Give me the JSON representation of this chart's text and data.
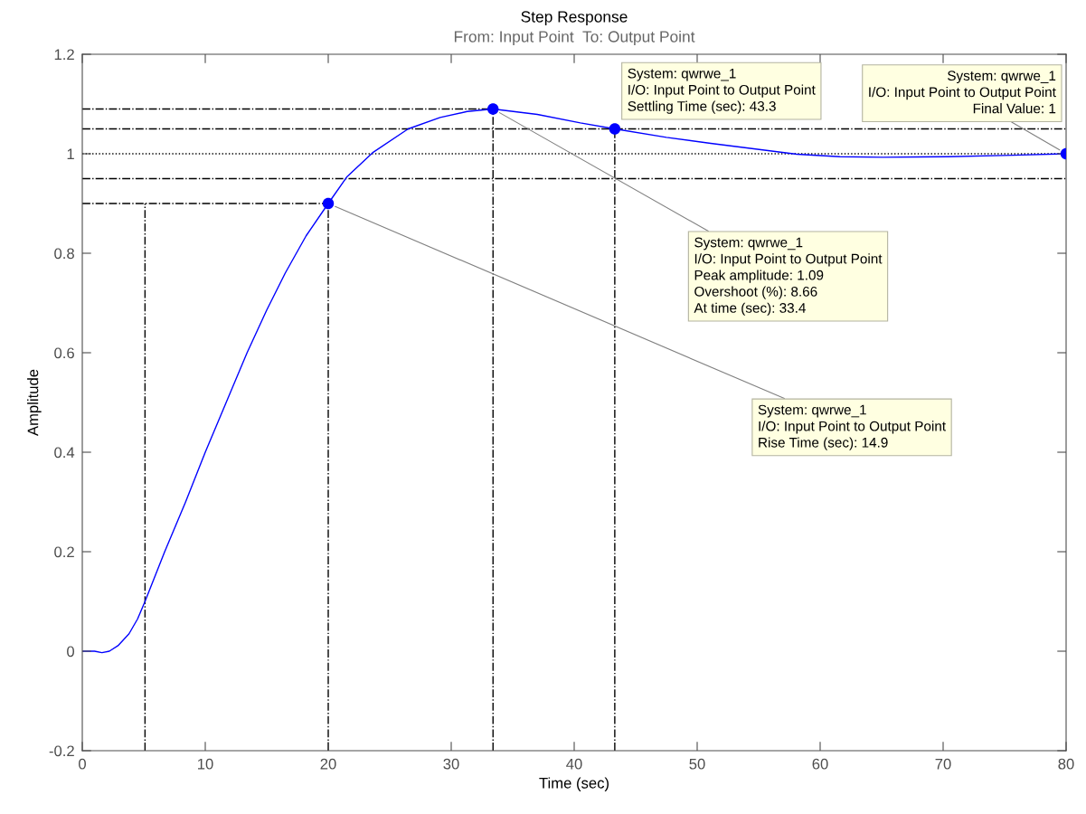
{
  "chart_data": {
    "type": "line",
    "title": "Step Response",
    "subtitle": "From: Input Point  To: Output Point",
    "xlabel": "Time (sec)",
    "ylabel": "Amplitude",
    "xlim": [
      0,
      80
    ],
    "xticks": [
      0,
      10,
      20,
      30,
      40,
      50,
      60,
      70,
      80
    ],
    "ylim": [
      -0.2,
      1.2
    ],
    "yticks": [
      -0.2,
      0,
      0.2,
      0.4,
      0.6,
      0.8,
      1,
      1.2
    ],
    "series": [
      {
        "color": "#0000ff",
        "marker": "none",
        "line_style": "solid",
        "x": [
          0,
          1,
          1.6,
          2.2,
          2.9,
          3.8,
          4.5,
          5.1,
          6.7,
          8.4,
          10.0,
          11.7,
          13.4,
          15.0,
          16.5,
          18.2,
          20,
          21.5,
          23.6,
          26.5,
          29.1,
          31.3,
          33.4,
          37,
          40.5,
          43.3,
          47.5,
          51.1,
          54.6,
          58.1,
          61.6,
          65.1,
          70.4,
          75.7,
          80
        ],
        "values": [
          0,
          0,
          -0.003,
          0,
          0.011,
          0.035,
          0.065,
          0.1,
          0.2,
          0.3,
          0.4,
          0.5,
          0.6,
          0.686,
          0.76,
          0.835,
          0.9,
          0.953,
          1.002,
          1.05,
          1.073,
          1.085,
          1.09,
          1.079,
          1.062,
          1.05,
          1.033,
          1.021,
          1.01,
          0.999,
          0.994,
          0.993,
          0.994,
          0.997,
          1
        ]
      },
      {
        "type": "line",
        "color": "#000000",
        "line_style": "dashdot",
        "x": [
          0,
          33.4
        ],
        "values": [
          1.09,
          1.09
        ]
      },
      {
        "type": "line",
        "color": "#000000",
        "line_style": "dashdot",
        "x": [
          33.4,
          33.4
        ],
        "values": [
          -0.2,
          1.09
        ]
      },
      {
        "type": "line",
        "color": "#000000",
        "line_style": "dashdot",
        "x": [
          43.3,
          43.3
        ],
        "values": [
          -0.2,
          1.05
        ]
      },
      {
        "type": "line",
        "color": "#000000",
        "line_style": "dashdot",
        "x": [
          0,
          20
        ],
        "values": [
          0.9,
          0.9
        ]
      },
      {
        "type": "line",
        "color": "#000000",
        "line_style": "dashdot",
        "x": [
          5.1,
          5.1
        ],
        "values": [
          -0.2,
          0.9
        ]
      },
      {
        "type": "line",
        "color": "#000000",
        "line_style": "dashdot",
        "x": [
          20,
          20
        ],
        "values": [
          -0.2,
          0.9
        ]
      },
      {
        "type": "scatter",
        "color": "#0000ff",
        "marker": "circle",
        "x": [
          20,
          33.4,
          43.3,
          80
        ],
        "values": [
          0.9,
          1.09,
          1.05,
          1
        ]
      }
    ],
    "ref_lines": [
      {
        "axis": "y",
        "value": 1.05,
        "color": "#000000",
        "line_style": "dashdot"
      },
      {
        "axis": "y",
        "value": 1,
        "color": "#000000",
        "line_style": "dotted"
      },
      {
        "axis": "y",
        "value": 0.95,
        "color": "#000000",
        "line_style": "dashdot"
      }
    ],
    "annotations": [
      {
        "text": "System: qwrwe_1\nI/O: Input Point to Output Point\nPeak amplitude: 1.09\nOvershoot (%): 8.66\nAt time (sec): 33.4",
        "x": 33.4,
        "y": 1.09
      },
      {
        "text": "System: qwrwe_1\nI/O: Input Point to Output Point\nSettling Time (sec): 43.3",
        "x": 43.3,
        "y": 1.05
      },
      {
        "text": "System: qwrwe_1\nI/O: Input Point to Output Point\nFinal Value: 1",
        "x": 80,
        "y": 1
      },
      {
        "text": "System: qwrwe_1\nI/O: Input Point to Output Point\nRise Time (sec): 14.9",
        "x": 20,
        "y": 0.9
      }
    ]
  }
}
